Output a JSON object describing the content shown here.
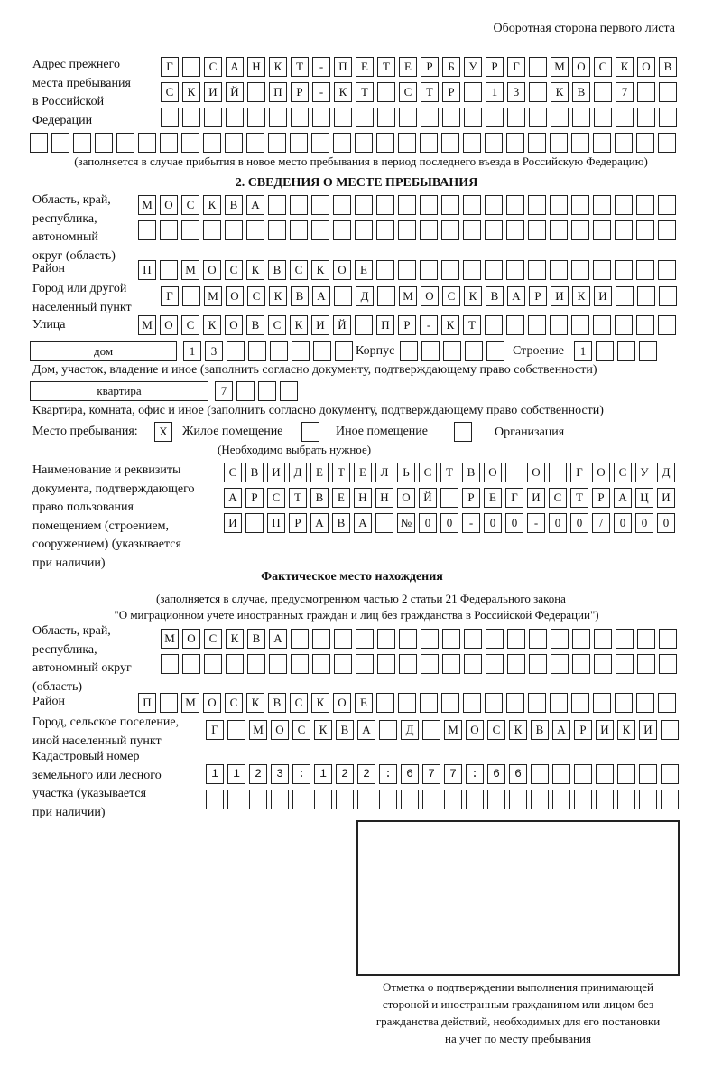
{
  "header": "Оборотная сторона первого листа",
  "prev_address": {
    "label": "Адрес прежнего\nместа пребывания\nв Российской\nФедерации",
    "rows": [
      "Г САНКТ-ПЕТЕРБУРГ МОСКОВ",
      "СКИЙ ПР-КТ СТР 13 КВ 7  ",
      "                        ",
      "                              "
    ],
    "note": "(заполняется в случае прибытия в новое место пребывания в период последнего въезда в Российскую Федерацию)"
  },
  "section2": {
    "title": "2. СВЕДЕНИЯ О МЕСТЕ ПРЕБЫВАНИЯ",
    "region_label": "Область, край,\nреспублика,\nавтономный\nокруг (область)",
    "region_rows": [
      "МОСКВА                   ",
      "                         "
    ],
    "district_label": "Район",
    "district": "П МОСКВСКОЕ              ",
    "city_label": "Город или другой\nнаселенный пункт",
    "city": "Г МОСКВА Д МОСКВАРИКИ   ",
    "street_label": "Улица",
    "street": "МОСКОВСКИЙ ПР-КТ         ",
    "house_type": "дом",
    "house": "13      ",
    "korpus_label": "Корпус",
    "korpus": "     ",
    "building_label": "Строение",
    "building": "1   ",
    "house_note": "Дом, участок, владение и иное (заполнить согласно документу, подтверждающему право собственности)",
    "flat_type": "квартира",
    "flat": "7   ",
    "flat_note": "Квартира, комната, офис и иное (заполнить согласно документу, подтверждающему право собственности)",
    "place_label": "Место пребывания:",
    "place_options": [
      {
        "mark": "X",
        "label": "Жилое помещение"
      },
      {
        "mark": "",
        "label": "Иное помещение"
      },
      {
        "mark": "",
        "label": "Организация"
      }
    ],
    "place_note": "(Необходимо выбрать нужное)",
    "doc_label": "Наименование и реквизиты\nдокумента, подтверждающего\nправо пользования\nпомещением (строением,\nсооружением) (указывается\nпри наличии)",
    "doc_rows": [
      "СВИДЕТЕЛЬСТВО О ГОСУД",
      "АРСТВЕННОЙ РЕГИСТРАЦИ",
      "И ПРАВА №00-00-00/000"
    ]
  },
  "actual": {
    "title": "Фактическое место нахождения",
    "note1": "(заполняется в случае, предусмотренном частью 2 статьи 21 Федерального закона",
    "note2": "\"О миграционном учете иностранных граждан и лиц без гражданства в Российской Федерации\")",
    "region_label": "Область, край,\nреспублика,\nавтономный округ\n(область)",
    "region_rows": [
      "МОСКВА                  ",
      "                        "
    ],
    "district_label": "Район",
    "district": "П МОСКВСКОЕ              ",
    "city_label": "Город, сельское поселение,\nиной населенный пункт",
    "city": "Г МОСКВА Д МОСКВАРИКИ ",
    "cadastral_label": "Кадастровый номер\nземельного или лесного\nучастка (указывается\nпри наличии)",
    "cadastral_rows": [
      "1123:122:677:66       ",
      "                      "
    ]
  },
  "stamp_caption": "Отметка о подтверждении выполнения принимающей\nстороной и иностранным гражданином или лицом без\nгражданства действий, необходимых для его постановки\nна учет по месту пребывания"
}
